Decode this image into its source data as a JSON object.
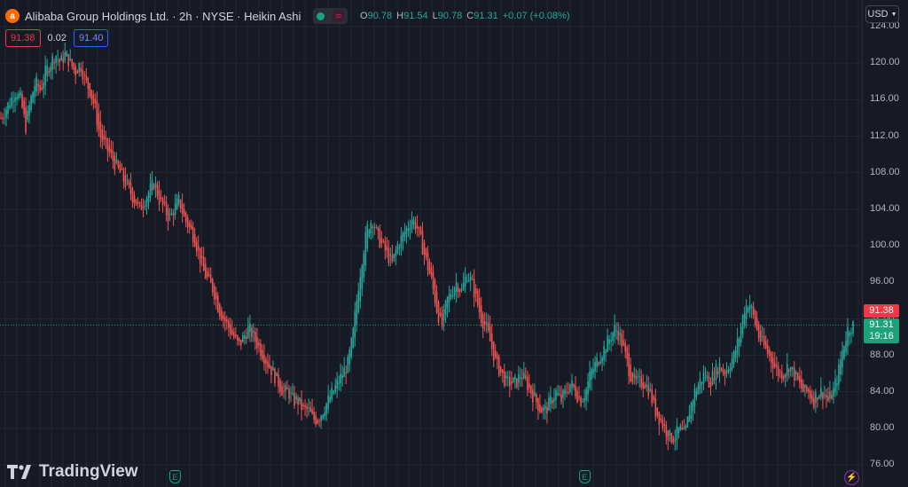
{
  "symbol": {
    "title": "Alibaba Group Holdings Ltd. · 2h · NYSE · Heikin Ashi",
    "logo_letter": "a",
    "logo_icon": "alibaba-logo-icon"
  },
  "ohlc": {
    "open_label": "O",
    "open": "90.78",
    "high_label": "H",
    "high": "91.54",
    "low_label": "L",
    "low": "90.78",
    "close_label": "C",
    "close": "91.31",
    "change": "+0.07 (+0.08%)"
  },
  "quote": {
    "bid": "91.38",
    "spread": "0.02",
    "ask": "91.40"
  },
  "axis": {
    "currency": "USD",
    "ticks": [
      "124.00",
      "120.00",
      "116.00",
      "112.00",
      "108.00",
      "104.00",
      "100.00",
      "96.00",
      "92.00",
      "88.00",
      "84.00",
      "80.00",
      "76.00"
    ]
  },
  "price_tags": {
    "bid": "91.38",
    "last": "91.31",
    "countdown": "19:16"
  },
  "branding": {
    "name": "TradingView"
  },
  "markers": {
    "earnings_label": "E",
    "earnings_icon": "earnings-icon",
    "events_icon": "lightning-icon"
  },
  "colors": {
    "up": "#26a69a",
    "down": "#ef5350",
    "background": "#161a25",
    "grid": "#232734"
  },
  "chart_data": {
    "type": "candlestick",
    "style": "Heikin Ashi",
    "interval": "2h",
    "ylim": [
      75,
      125
    ],
    "last_price": 91.31,
    "price_path": [
      114,
      115,
      116,
      117,
      116,
      113,
      116,
      118,
      117,
      119,
      120,
      121,
      120,
      121,
      120,
      119,
      120,
      118,
      117,
      115,
      112,
      111,
      110,
      109,
      108,
      107,
      106,
      105,
      104,
      105,
      106,
      107,
      105,
      104,
      103,
      104,
      105,
      103,
      102,
      101,
      99,
      97,
      96,
      95,
      93,
      92,
      91,
      90,
      89,
      90,
      91,
      90,
      89,
      88,
      87,
      86,
      85,
      84,
      84,
      83,
      83,
      82,
      82,
      81,
      81,
      82,
      83,
      84,
      85,
      86,
      87,
      90,
      95,
      99,
      102,
      103,
      101,
      100,
      99,
      98,
      100,
      101,
      102,
      103,
      102,
      100,
      98,
      96,
      93,
      91,
      94,
      95,
      96,
      95,
      97,
      96,
      94,
      92,
      91,
      89,
      87,
      86,
      85,
      85,
      85,
      86,
      85,
      84,
      83,
      82,
      82,
      83,
      84,
      83,
      84,
      85,
      84,
      83,
      84,
      86,
      87,
      88,
      89,
      90,
      91,
      90,
      88,
      86,
      85,
      85,
      85,
      84,
      82,
      81,
      80,
      79,
      79,
      80,
      79,
      82,
      84,
      85,
      86,
      85,
      86,
      87,
      86,
      87,
      88,
      90,
      93,
      94,
      92,
      90,
      89,
      88,
      87,
      86,
      86,
      87,
      86,
      85,
      84,
      84,
      83,
      84,
      84,
      83,
      84,
      86,
      89,
      91,
      91.31
    ],
    "grid": true
  }
}
